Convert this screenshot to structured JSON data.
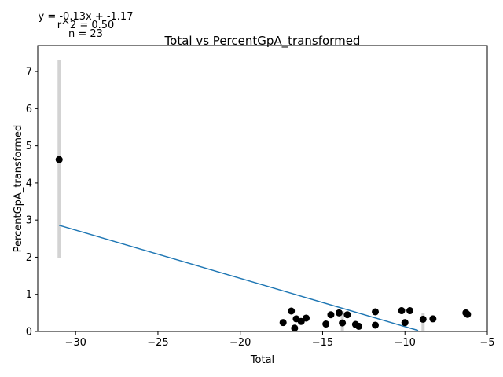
{
  "chart_data": {
    "type": "scatter",
    "title": "Total vs PercentGpA_transformed",
    "xlabel": "Total",
    "ylabel": "PercentGpA_transformed",
    "xlim": [
      -32.3,
      -5.0
    ],
    "ylim": [
      0,
      7.7
    ],
    "xticks": [
      -30,
      -25,
      -20,
      -15,
      -10,
      -5
    ],
    "yticks": [
      0,
      1,
      2,
      3,
      4,
      5,
      6,
      7
    ],
    "xtick_labels": [
      "−30",
      "−25",
      "−20",
      "−15",
      "−10",
      "−5"
    ],
    "ytick_labels": [
      "0",
      "1",
      "2",
      "3",
      "4",
      "5",
      "6",
      "7"
    ],
    "grid": false,
    "annotations": [
      "y = -0.13x + -1.17",
      "r^2 = 0.50",
      "n = 23"
    ],
    "fit_line": {
      "slope": -0.13,
      "intercept": -1.17,
      "x_range": [
        -31.0,
        -9.2
      ]
    },
    "error_bars": [
      {
        "x": -31.0,
        "low": 1.97,
        "high": 7.3
      },
      {
        "x": -13.8,
        "low": 0.0,
        "high": 0.55
      },
      {
        "x": -8.9,
        "low": 0.0,
        "high": 0.5
      }
    ],
    "points": [
      {
        "x": -31.0,
        "y": 4.63
      },
      {
        "x": -17.4,
        "y": 0.24
      },
      {
        "x": -16.9,
        "y": 0.55
      },
      {
        "x": -16.7,
        "y": 0.09
      },
      {
        "x": -16.6,
        "y": 0.34
      },
      {
        "x": -16.3,
        "y": 0.27
      },
      {
        "x": -16.0,
        "y": 0.36
      },
      {
        "x": -14.8,
        "y": 0.2
      },
      {
        "x": -14.5,
        "y": 0.45
      },
      {
        "x": -14.0,
        "y": 0.5
      },
      {
        "x": -13.8,
        "y": 0.23
      },
      {
        "x": -13.5,
        "y": 0.45
      },
      {
        "x": -13.0,
        "y": 0.19
      },
      {
        "x": -12.8,
        "y": 0.14
      },
      {
        "x": -11.8,
        "y": 0.53
      },
      {
        "x": -11.8,
        "y": 0.17
      },
      {
        "x": -10.2,
        "y": 0.56
      },
      {
        "x": -10.0,
        "y": 0.24
      },
      {
        "x": -9.7,
        "y": 0.56
      },
      {
        "x": -8.9,
        "y": 0.33
      },
      {
        "x": -8.3,
        "y": 0.34
      },
      {
        "x": -6.3,
        "y": 0.5
      },
      {
        "x": -6.2,
        "y": 0.46
      }
    ],
    "colors": {
      "points": "#000000",
      "fit_line": "#1f77b4",
      "error_bars": "#d3d3d3"
    }
  }
}
